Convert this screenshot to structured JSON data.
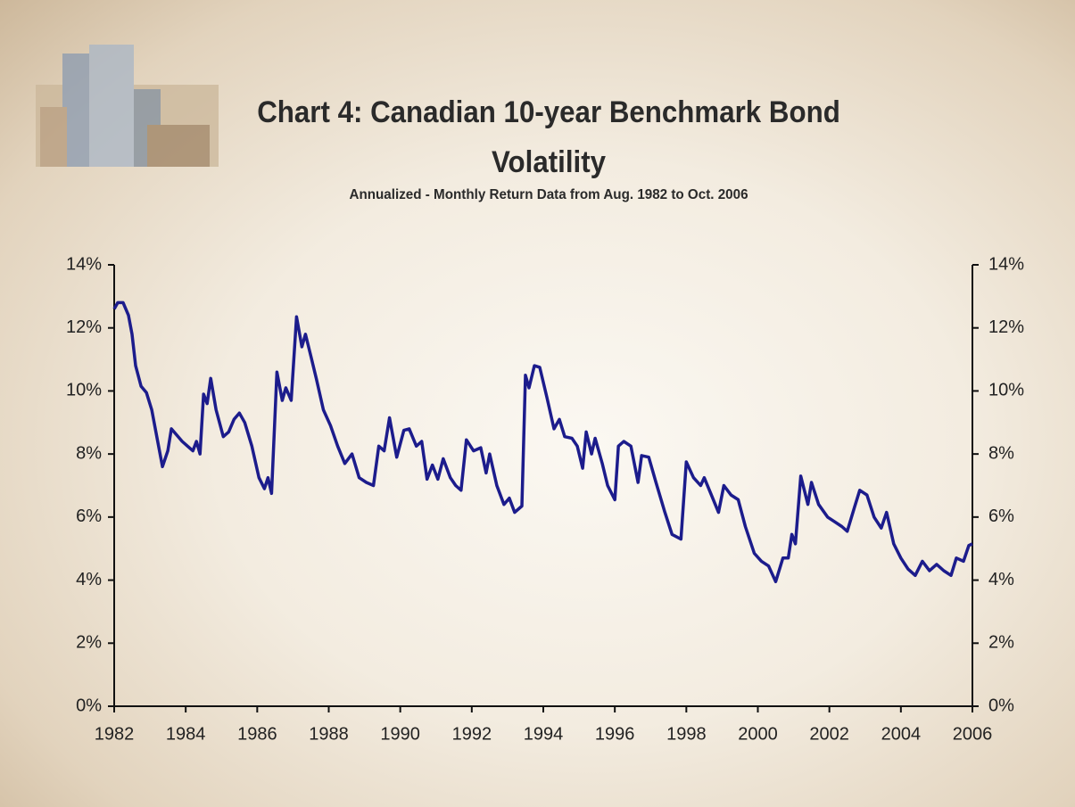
{
  "chart_data": {
    "type": "line",
    "title": "Chart 4: Canadian 10-year Benchmark Bond Volatility",
    "subtitle": "Annualized - Monthly Return Data from Aug. 1982 to Oct. 2006",
    "color": "#1c1c8c",
    "x": [
      1982.0,
      1982.1,
      1982.25,
      1982.4,
      1982.5,
      1982.6,
      1982.75,
      1982.9,
      1983.05,
      1983.2,
      1983.35,
      1983.5,
      1983.6,
      1983.75,
      1983.9,
      1984.05,
      1984.2,
      1984.3,
      1984.4,
      1984.5,
      1984.6,
      1984.7,
      1984.85,
      1985.05,
      1985.2,
      1985.35,
      1985.5,
      1985.65,
      1985.85,
      1986.05,
      1986.2,
      1986.3,
      1986.4,
      1986.55,
      1986.7,
      1986.8,
      1986.95,
      1987.1,
      1987.25,
      1987.35,
      1987.5,
      1987.65,
      1987.85,
      1988.05,
      1988.25,
      1988.45,
      1988.65,
      1988.85,
      1989.05,
      1989.25,
      1989.4,
      1989.55,
      1989.7,
      1989.9,
      1990.1,
      1990.25,
      1990.45,
      1990.6,
      1990.75,
      1990.9,
      1991.05,
      1991.2,
      1991.4,
      1991.55,
      1991.7,
      1991.85,
      1992.05,
      1992.25,
      1992.4,
      1992.5,
      1992.7,
      1992.9,
      1993.05,
      1993.2,
      1993.4,
      1993.5,
      1993.6,
      1993.75,
      1993.9,
      1994.1,
      1994.3,
      1994.45,
      1994.6,
      1994.8,
      1994.95,
      1995.1,
      1995.2,
      1995.35,
      1995.45,
      1995.65,
      1995.8,
      1996.0,
      1996.1,
      1996.25,
      1996.45,
      1996.65,
      1996.75,
      1996.95,
      1997.15,
      1997.4,
      1997.6,
      1997.85,
      1998.0,
      1998.2,
      1998.4,
      1998.5,
      1998.7,
      1998.9,
      1999.05,
      1999.25,
      1999.45,
      1999.65,
      1999.9,
      2000.1,
      2000.3,
      2000.5,
      2000.7,
      2000.85,
      2000.95,
      2001.05,
      2001.2,
      2001.4,
      2001.5,
      2001.7,
      2001.95,
      2002.15,
      2002.35,
      2002.5,
      2002.7,
      2002.85,
      2003.05,
      2003.25,
      2003.45,
      2003.6,
      2003.8,
      2004.0,
      2004.2,
      2004.4,
      2004.6,
      2004.8,
      2005.0,
      2005.2,
      2005.4,
      2005.55,
      2005.75,
      2005.9,
      2006.0
    ],
    "values": [
      12.6,
      12.8,
      12.8,
      12.4,
      11.8,
      10.8,
      10.15,
      9.95,
      9.4,
      8.5,
      7.6,
      8.1,
      8.8,
      8.6,
      8.4,
      8.25,
      8.1,
      8.4,
      8.0,
      9.9,
      9.6,
      10.4,
      9.4,
      8.55,
      8.7,
      9.1,
      9.3,
      9.0,
      8.25,
      7.25,
      6.9,
      7.25,
      6.75,
      10.6,
      9.7,
      10.1,
      9.7,
      12.35,
      11.4,
      11.8,
      11.1,
      10.4,
      9.4,
      8.9,
      8.25,
      7.7,
      8.0,
      7.25,
      7.1,
      7.0,
      8.25,
      8.1,
      9.15,
      7.9,
      8.75,
      8.8,
      8.25,
      8.4,
      7.2,
      7.65,
      7.2,
      7.85,
      7.25,
      7.0,
      6.85,
      8.45,
      8.1,
      8.2,
      7.4,
      8.0,
      7.0,
      6.4,
      6.6,
      6.15,
      6.35,
      10.5,
      10.1,
      10.8,
      10.75,
      9.8,
      8.8,
      9.1,
      8.55,
      8.5,
      8.25,
      7.55,
      8.7,
      8.0,
      8.5,
      7.7,
      7.0,
      6.55,
      8.25,
      8.4,
      8.25,
      7.1,
      7.95,
      7.9,
      7.1,
      6.15,
      5.45,
      5.3,
      7.75,
      7.25,
      7.0,
      7.25,
      6.7,
      6.15,
      7.0,
      6.7,
      6.55,
      5.7,
      4.85,
      4.6,
      4.45,
      3.95,
      4.7,
      4.7,
      5.45,
      5.15,
      7.3,
      6.4,
      7.1,
      6.4,
      6.0,
      5.85,
      5.7,
      5.55,
      6.3,
      6.85,
      6.7,
      6.0,
      5.65,
      6.15,
      5.15,
      4.7,
      4.35,
      4.15,
      4.6,
      4.3,
      4.5,
      4.3,
      4.15,
      4.7,
      4.6,
      5.1,
      5.15
    ],
    "xlim": [
      1982,
      2006
    ],
    "xticks": [
      1982,
      1984,
      1986,
      1988,
      1990,
      1992,
      1994,
      1996,
      1998,
      2000,
      2002,
      2004,
      2006
    ],
    "ylim": [
      0,
      14
    ],
    "yticks": [
      {
        "value": 0,
        "label": "0%"
      },
      {
        "value": 2,
        "label": "2%"
      },
      {
        "value": 4,
        "label": "4%"
      },
      {
        "value": 6,
        "label": "6%"
      },
      {
        "value": 8,
        "label": "8%"
      },
      {
        "value": 10,
        "label": "10%"
      },
      {
        "value": 12,
        "label": "12%"
      },
      {
        "value": 14,
        "label": "14%"
      }
    ],
    "y2lim": [
      0,
      14
    ],
    "y2ticks": [
      {
        "value": 0,
        "label": "0%"
      },
      {
        "value": 2,
        "label": "2%"
      },
      {
        "value": 4,
        "label": "4%"
      },
      {
        "value": 6,
        "label": "6%"
      },
      {
        "value": 8,
        "label": "8%"
      },
      {
        "value": 10,
        "label": "10%"
      },
      {
        "value": 12,
        "label": "12%"
      },
      {
        "value": 14,
        "label": "14%"
      }
    ],
    "grid": false
  }
}
